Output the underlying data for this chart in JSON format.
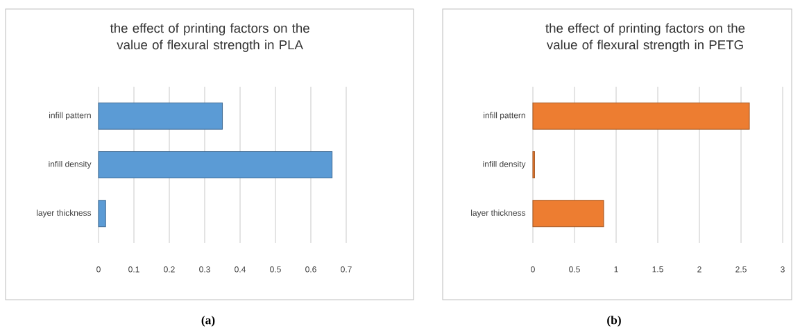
{
  "chart_data": [
    {
      "type": "bar",
      "orientation": "horizontal",
      "title": "the effect of printing factors on the value of flexural strength in PLA",
      "categories": [
        "infill pattern",
        "infill density",
        "layer thickness"
      ],
      "values": [
        0.35,
        0.66,
        0.02
      ],
      "color": "#5b9bd5",
      "xlim": [
        0,
        0.7
      ],
      "xticks": [
        0,
        0.1,
        0.2,
        0.3,
        0.4,
        0.5,
        0.6,
        0.7
      ],
      "grid": "x",
      "annotations": [
        "(a)"
      ]
    },
    {
      "type": "bar",
      "orientation": "horizontal",
      "title": "the effect of printing factors on the value of flexural strength in PETG",
      "categories": [
        "infill pattern",
        "infill density",
        "layer thickness"
      ],
      "values": [
        2.6,
        0.02,
        0.85
      ],
      "color": "#ed7d31",
      "xlim": [
        0,
        3
      ],
      "xticks": [
        0,
        0.5,
        1,
        1.5,
        2,
        2.5,
        3
      ],
      "grid": "x",
      "annotations": [
        "(b)"
      ]
    }
  ]
}
